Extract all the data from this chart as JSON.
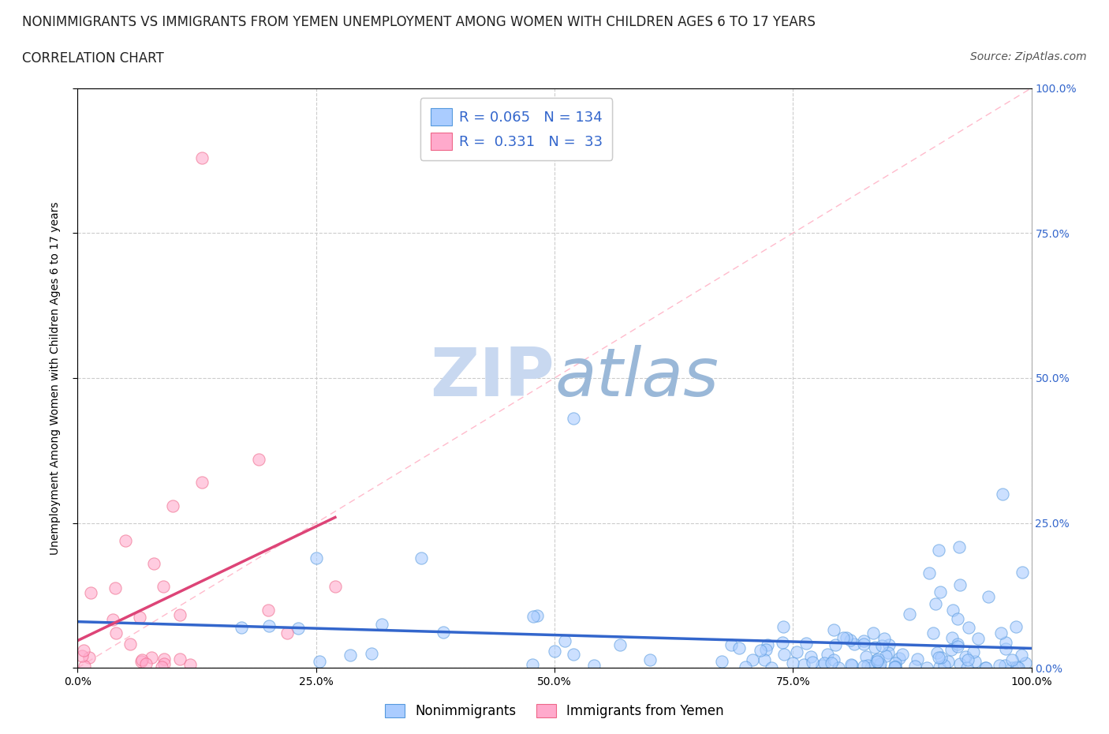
{
  "title_line1": "NONIMMIGRANTS VS IMMIGRANTS FROM YEMEN UNEMPLOYMENT AMONG WOMEN WITH CHILDREN AGES 6 TO 17 YEARS",
  "title_line2": "CORRELATION CHART",
  "source_text": "Source: ZipAtlas.com",
  "ylabel": "Unemployment Among Women with Children Ages 6 to 17 years",
  "xlim": [
    0,
    1
  ],
  "ylim": [
    0,
    1
  ],
  "xtick_vals": [
    0,
    0.25,
    0.5,
    0.75,
    1.0
  ],
  "xtick_labels": [
    "0.0%",
    "25.0%",
    "50.0%",
    "75.0%",
    "100.0%"
  ],
  "ytick_vals": [
    0,
    0.25,
    0.5,
    0.75,
    1.0
  ],
  "ytick_labels": [
    "",
    "",
    "",
    "",
    ""
  ],
  "right_ytick_labels": [
    "0.0%",
    "25.0%",
    "50.0%",
    "75.0%",
    "100.0%"
  ],
  "nonimmigrant_color": "#aaccff",
  "nonimmigrant_edge": "#5599dd",
  "immigrant_color": "#ffaacc",
  "immigrant_edge": "#ee6688",
  "regression_blue": "#3366cc",
  "regression_pink": "#dd4477",
  "diagonal_color": "#cccccc",
  "diagonal_style": "--",
  "watermark_color": "#d0dff0",
  "watermark_text": "ZIPatlas",
  "R_nonimmigrant": 0.065,
  "N_nonimmigrant": 134,
  "R_immigrant": 0.331,
  "N_immigrant": 33,
  "background_color": "#ffffff",
  "grid_color": "#cccccc",
  "title_fontsize": 12,
  "axis_label_fontsize": 10,
  "tick_fontsize": 10,
  "legend_fontsize": 13,
  "source_fontsize": 10
}
